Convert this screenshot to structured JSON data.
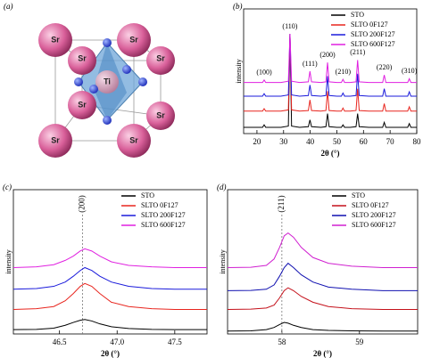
{
  "structure": {
    "panel_label": "(a)",
    "atoms": [
      "Sr",
      "Sr",
      "Sr",
      "Sr",
      "Sr",
      "Sr",
      "Sr",
      "Sr",
      "Ti"
    ]
  },
  "chart_data": [
    {
      "type": "line",
      "panel_label": "(b)",
      "xlabel": "2θ (°)",
      "ylabel": "intensity",
      "xlim": [
        15,
        80
      ],
      "ylim": [
        0,
        10
      ],
      "xticks": [
        20,
        30,
        40,
        50,
        60,
        70,
        80
      ],
      "legend": "upper right",
      "x": [
        15,
        18,
        21,
        22.1,
        22.7,
        23.3,
        26,
        29,
        31.8,
        32.4,
        33.0,
        36,
        39.3,
        39.9,
        40.5,
        44,
        45.9,
        46.5,
        47.1,
        50,
        51.7,
        52.3,
        52.9,
        55,
        57.2,
        57.8,
        58.4,
        62,
        67.2,
        67.8,
        68.4,
        72,
        76.6,
        77.2,
        77.8,
        80
      ],
      "series": [
        {
          "name": "STO",
          "color": "#000000",
          "values": [
            0.5,
            0.5,
            0.5,
            0.5,
            0.7,
            0.5,
            0.5,
            0.5,
            0.6,
            8.0,
            0.6,
            0.5,
            0.55,
            1.1,
            0.55,
            0.5,
            0.55,
            1.6,
            0.55,
            0.5,
            0.5,
            0.7,
            0.5,
            0.5,
            0.55,
            1.6,
            0.55,
            0.5,
            0.5,
            0.9,
            0.5,
            0.5,
            0.5,
            0.8,
            0.5,
            0.5
          ]
        },
        {
          "name": "SLTO 0F127",
          "color": "#e8251e",
          "values": [
            1.8,
            1.8,
            1.8,
            1.8,
            2.0,
            1.8,
            1.8,
            1.8,
            1.9,
            8.0,
            1.9,
            1.8,
            1.85,
            2.7,
            1.85,
            1.8,
            1.85,
            3.4,
            1.85,
            1.8,
            1.8,
            2.05,
            1.8,
            1.8,
            1.85,
            3.6,
            1.85,
            1.8,
            1.8,
            2.4,
            1.8,
            1.8,
            1.8,
            2.15,
            1.8,
            1.8
          ]
        },
        {
          "name": "SLTO 200F127",
          "color": "#1a1adb",
          "values": [
            3.0,
            3.0,
            3.0,
            3.0,
            3.2,
            3.0,
            3.0,
            3.0,
            3.1,
            8.0,
            3.1,
            3.0,
            3.05,
            3.9,
            3.05,
            3.0,
            3.05,
            4.6,
            3.05,
            3.0,
            3.0,
            3.25,
            3.0,
            3.0,
            3.05,
            4.8,
            3.05,
            3.0,
            3.0,
            3.6,
            3.0,
            3.0,
            3.0,
            3.35,
            3.0,
            3.0
          ]
        },
        {
          "name": "SLTO 600F127",
          "color": "#e020e0",
          "values": [
            4.1,
            4.1,
            4.1,
            4.1,
            4.3,
            4.1,
            4.1,
            4.1,
            4.2,
            8.0,
            4.2,
            4.1,
            4.15,
            5.0,
            4.15,
            4.1,
            4.15,
            5.7,
            4.15,
            4.1,
            4.1,
            4.35,
            4.1,
            4.1,
            4.15,
            5.9,
            4.15,
            4.1,
            4.1,
            4.7,
            4.1,
            4.1,
            4.1,
            4.4,
            4.1,
            4.1
          ]
        }
      ],
      "peak_labels": [
        {
          "label": "(100)",
          "x": 22.7
        },
        {
          "label": "(110)",
          "x": 32.4
        },
        {
          "label": "(111)",
          "x": 39.9
        },
        {
          "label": "(200)",
          "x": 46.5
        },
        {
          "label": "(210)",
          "x": 52.3
        },
        {
          "label": "(211)",
          "x": 57.8
        },
        {
          "label": "(220)",
          "x": 67.8
        },
        {
          "label": "(310)",
          "x": 77.2
        }
      ]
    },
    {
      "type": "line",
      "panel_label": "(c)",
      "xlabel": "2θ (°)",
      "ylabel": "intensity",
      "xlim": [
        46.1,
        47.78
      ],
      "ylim": [
        0,
        10
      ],
      "xticks": [
        46.5,
        {
          "value": 47,
          "label": "47.0"
        },
        47.5
      ],
      "legend": "upper right",
      "x": [
        46.1,
        46.3,
        46.45,
        46.55,
        46.62,
        46.68,
        46.72,
        46.78,
        46.85,
        46.95,
        47.1,
        47.3,
        47.5,
        47.78
      ],
      "series": [
        {
          "name": "STO",
          "color": "#000000",
          "values": [
            0.3,
            0.32,
            0.4,
            0.6,
            0.8,
            0.95,
            1.0,
            0.9,
            0.7,
            0.5,
            0.38,
            0.32,
            0.3,
            0.3
          ]
        },
        {
          "name": "SLTO 0F127",
          "color": "#e8251e",
          "values": [
            1.7,
            1.75,
            1.9,
            2.3,
            2.8,
            3.3,
            3.5,
            3.3,
            2.8,
            2.2,
            1.9,
            1.75,
            1.7,
            1.7
          ]
        },
        {
          "name": "SLTO 200F127",
          "color": "#1a1adb",
          "values": [
            3.1,
            3.15,
            3.3,
            3.6,
            4.0,
            4.4,
            4.6,
            4.4,
            4.0,
            3.6,
            3.3,
            3.15,
            3.1,
            3.1
          ]
        },
        {
          "name": "SLTO 600F127",
          "color": "#e020e0",
          "values": [
            4.6,
            4.65,
            4.8,
            5.1,
            5.4,
            5.75,
            5.9,
            5.75,
            5.4,
            5.0,
            4.75,
            4.65,
            4.6,
            4.6
          ]
        }
      ],
      "reference": {
        "x": 46.7,
        "label": "(200)"
      }
    },
    {
      "type": "line",
      "panel_label": "(d)",
      "xlabel": "2θ (°)",
      "ylabel": "intensity",
      "xlim": [
        57.3,
        59.75
      ],
      "ylim": [
        0,
        10
      ],
      "xticks": [
        58,
        59
      ],
      "legend": "upper right",
      "x": [
        57.3,
        57.6,
        57.8,
        57.9,
        57.97,
        58.03,
        58.08,
        58.15,
        58.25,
        58.4,
        58.6,
        58.9,
        59.3,
        59.75
      ],
      "series": [
        {
          "name": "STO",
          "color": "#000000",
          "values": [
            0.2,
            0.22,
            0.3,
            0.45,
            0.65,
            0.8,
            0.75,
            0.6,
            0.45,
            0.3,
            0.25,
            0.22,
            0.2,
            0.2
          ]
        },
        {
          "name": "SLTO 0F127",
          "color": "#c4101a",
          "values": [
            1.7,
            1.72,
            1.8,
            2.0,
            2.5,
            3.0,
            3.2,
            3.0,
            2.6,
            2.2,
            1.9,
            1.75,
            1.7,
            1.7
          ]
        },
        {
          "name": "SLTO 200F127",
          "color": "#1010b0",
          "values": [
            3.0,
            3.02,
            3.1,
            3.4,
            4.0,
            4.6,
            4.9,
            4.6,
            4.1,
            3.6,
            3.25,
            3.1,
            3.0,
            3.0
          ]
        },
        {
          "name": "SLTO 600F127",
          "color": "#d020d0",
          "values": [
            4.6,
            4.62,
            4.75,
            5.2,
            6.0,
            6.8,
            7.0,
            6.7,
            6.0,
            5.3,
            4.9,
            4.7,
            4.6,
            4.6
          ]
        }
      ],
      "reference": {
        "x": 58.0,
        "label": "(211)"
      }
    }
  ]
}
